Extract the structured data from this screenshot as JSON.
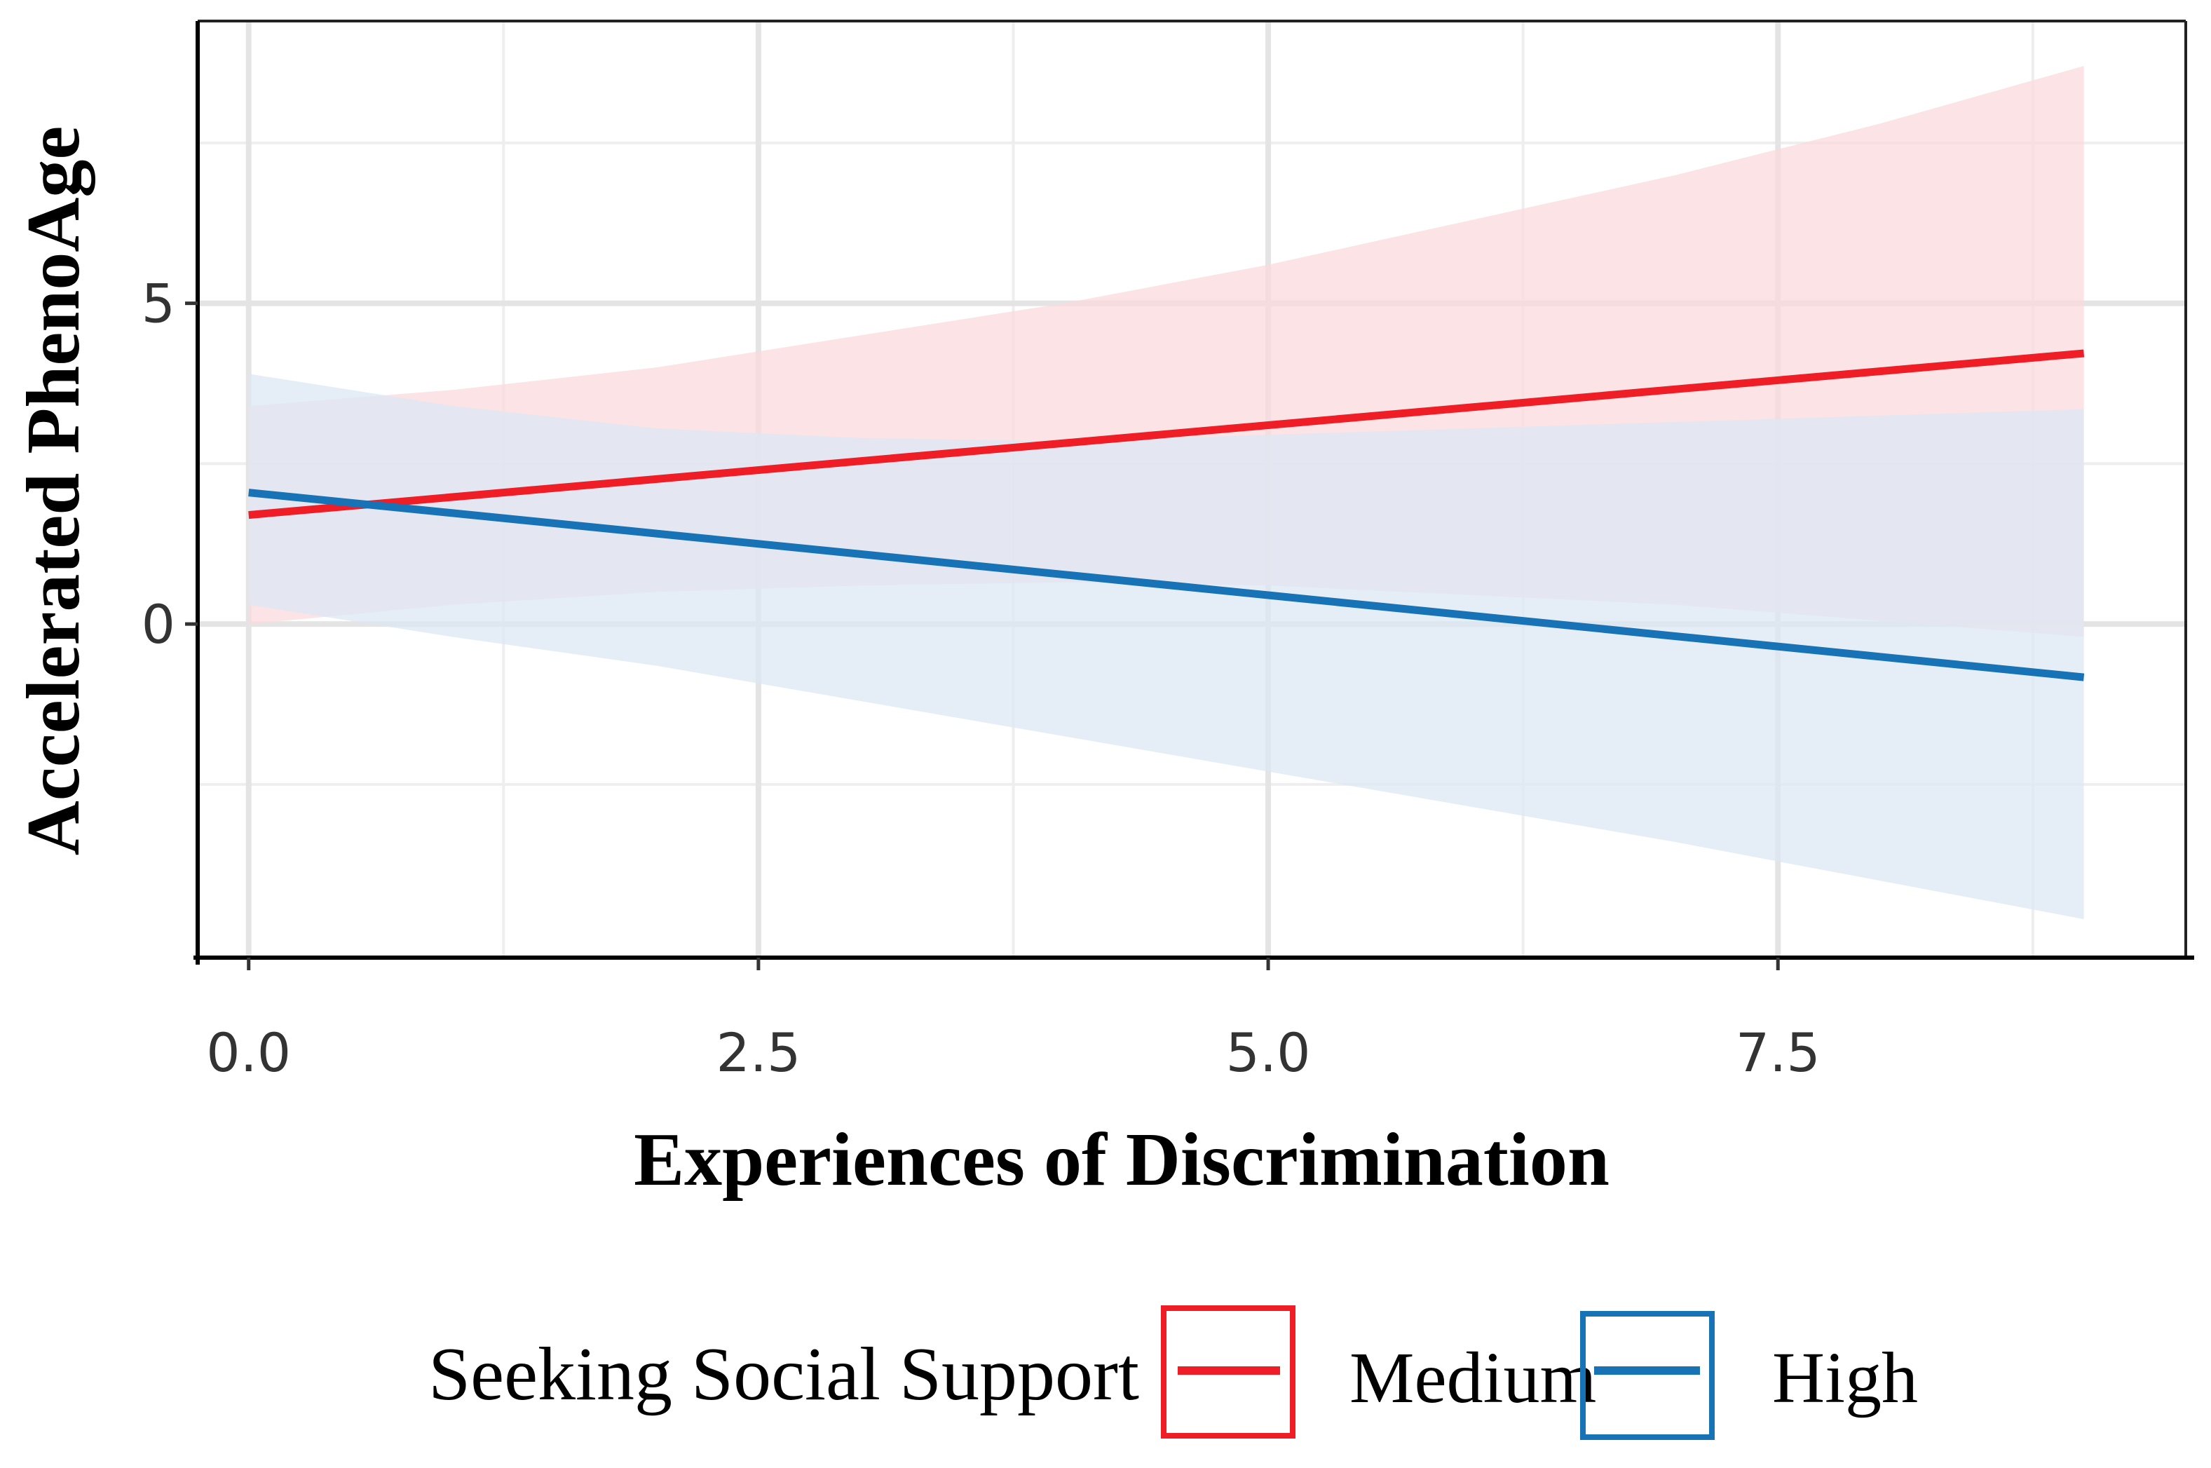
{
  "chart_data": {
    "type": "line",
    "title": "",
    "xlabel": "Experiences of Discrimination",
    "ylabel": "Accelerated PhenoAge",
    "xlim": [
      -0.25,
      9.5
    ],
    "ylim": [
      -5.2,
      9.4
    ],
    "x_ticks": [
      {
        "value": 0.0,
        "label": "0.0"
      },
      {
        "value": 2.5,
        "label": "2.5"
      },
      {
        "value": 5.0,
        "label": "5.0"
      },
      {
        "value": 7.5,
        "label": "7.5"
      }
    ],
    "y_ticks": [
      {
        "value": 0,
        "label": "0"
      },
      {
        "value": 5,
        "label": "5"
      }
    ],
    "x_minor_grid": [
      1.25,
      3.75,
      6.25,
      8.75
    ],
    "y_minor_grid": [
      -2.5,
      2.5,
      7.5
    ],
    "grid": true,
    "legend": {
      "title": "Seeking Social Support",
      "position": "bottom"
    },
    "series": [
      {
        "name": "Medium",
        "color": "#ee1d26",
        "ribbon_color": "#fbdadc",
        "x": [
          0,
          1,
          2,
          3,
          4,
          5,
          6,
          7,
          8,
          9
        ],
        "y": [
          1.7,
          1.98,
          2.26,
          2.54,
          2.82,
          3.1,
          3.38,
          3.66,
          3.94,
          4.22
        ],
        "ci_lower": [
          0.0,
          0.3,
          0.5,
          0.6,
          0.65,
          0.6,
          0.45,
          0.3,
          0.05,
          -0.2
        ],
        "ci_upper": [
          3.4,
          3.65,
          4.0,
          4.5,
          5.0,
          5.6,
          6.3,
          7.0,
          7.8,
          8.7
        ]
      },
      {
        "name": "High",
        "color": "#1772b6",
        "ribbon_color": "#dce8f4",
        "x": [
          0,
          1,
          2,
          3,
          4,
          5,
          6,
          7,
          8,
          9
        ],
        "y": [
          2.05,
          1.73,
          1.41,
          1.09,
          0.77,
          0.45,
          0.13,
          -0.19,
          -0.51,
          -0.83
        ],
        "ci_lower": [
          0.3,
          -0.2,
          -0.65,
          -1.2,
          -1.75,
          -2.3,
          -2.85,
          -3.4,
          -4.0,
          -4.6
        ],
        "ci_upper": [
          3.9,
          3.4,
          3.05,
          2.9,
          2.85,
          2.95,
          3.05,
          3.15,
          3.25,
          3.35
        ]
      }
    ]
  }
}
